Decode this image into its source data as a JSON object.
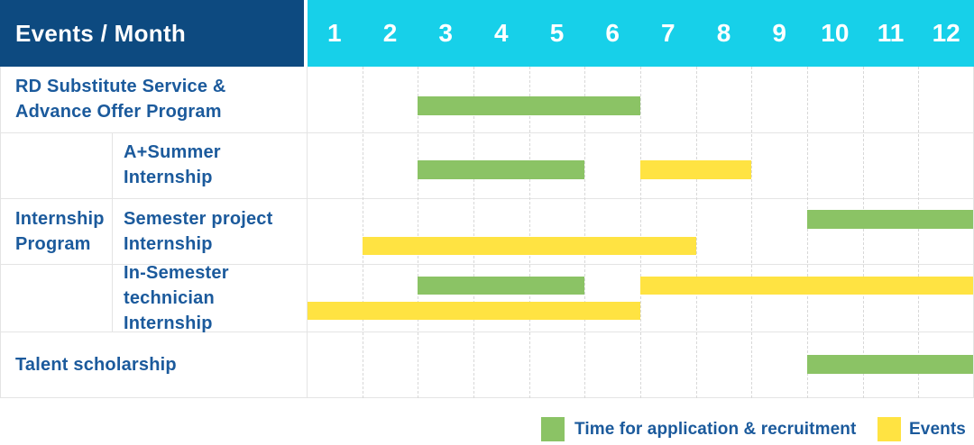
{
  "table": {
    "corner_label": "Events / Month",
    "months": [
      "1",
      "2",
      "3",
      "4",
      "5",
      "6",
      "7",
      "8",
      "9",
      "10",
      "11",
      "12"
    ],
    "rows": [
      {
        "lines": [
          "RD Substitute Service &",
          "Advance Offer Program"
        ]
      },
      {
        "lines": [
          "A+Summer",
          "Internship"
        ]
      },
      {
        "lines": [
          "Semester project",
          "Internship"
        ]
      },
      {
        "lines": [
          "In-Semester",
          "technician Internship"
        ]
      },
      {
        "lines": [
          "Talent scholarship"
        ]
      }
    ],
    "group_label_lines": [
      "Internship",
      "Program"
    ]
  },
  "legend": {
    "application_label": "Time for application & recruitment",
    "events_label": "Events"
  },
  "colors": {
    "header_navy": "#0d4a80",
    "header_cyan": "#17d0e9",
    "application_green": "#8bc365",
    "event_yellow": "#ffe342",
    "label_blue": "#1b5a9c"
  },
  "chart_data": {
    "type": "gantt",
    "x_unit": "month",
    "x_ticks": [
      1,
      2,
      3,
      4,
      5,
      6,
      7,
      8,
      9,
      10,
      11,
      12
    ],
    "legend": {
      "application": "Time for application & recruitment",
      "event": "Events"
    },
    "tasks": [
      {
        "name": "RD Substitute Service & Advance Offer Program",
        "group": null,
        "bars": [
          {
            "kind": "application",
            "start_month": 3,
            "end_month": 6
          }
        ]
      },
      {
        "name": "A+Summer Internship",
        "group": "Internship Program",
        "bars": [
          {
            "kind": "application",
            "start_month": 3,
            "end_month": 5
          },
          {
            "kind": "event",
            "start_month": 7,
            "end_month": 8
          }
        ]
      },
      {
        "name": "Semester project Internship",
        "group": "Internship Program",
        "bars": [
          {
            "kind": "application",
            "start_month": 10,
            "end_month": 12
          },
          {
            "kind": "event",
            "start_month": 2,
            "end_month": 7
          }
        ]
      },
      {
        "name": "In-Semester technician Internship",
        "group": "Internship Program",
        "bars": [
          {
            "kind": "application",
            "start_month": 3,
            "end_month": 5
          },
          {
            "kind": "event",
            "start_month": 7,
            "end_month": 12
          },
          {
            "kind": "event",
            "start_month": 1,
            "end_month": 6
          }
        ]
      },
      {
        "name": "Talent scholarship",
        "group": null,
        "bars": [
          {
            "kind": "application",
            "start_month": 10,
            "end_month": 12
          }
        ]
      }
    ]
  }
}
